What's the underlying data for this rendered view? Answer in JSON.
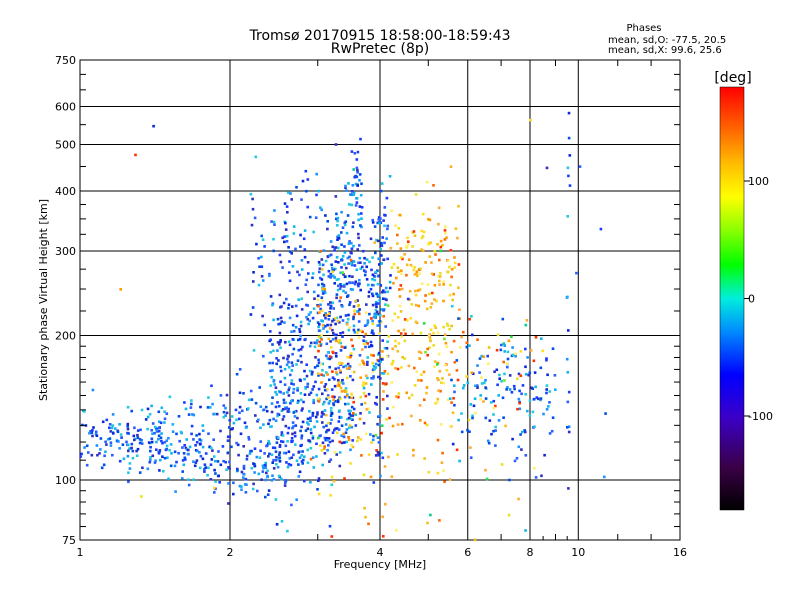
{
  "chart_data": {
    "type": "scatter",
    "title": "Tromsø 20170915 18:58:00-18:59:43",
    "subtitle": "RwPretec (8p)",
    "xlabel": "Frequency [MHz]",
    "ylabel": "Stationary phase Virtual Height [km]",
    "xscale": "log",
    "yscale": "log",
    "xlim": [
      1,
      16
    ],
    "ylim": [
      75,
      750
    ],
    "x_ticks": [
      1,
      2,
      4,
      6,
      8,
      10,
      16
    ],
    "x_tick_labels": [
      "1",
      "2",
      "4",
      "6",
      "8",
      "10",
      "16"
    ],
    "y_ticks": [
      75,
      100,
      200,
      300,
      400,
      500,
      600,
      750
    ],
    "y_tick_labels": [
      "75",
      "100",
      "200",
      "300",
      "400",
      "500",
      "600",
      "750"
    ],
    "grid": true,
    "stats": {
      "heading": "Phases",
      "line1": "mean, sd,O: -77.5, 20.5",
      "line2": "mean, sd,X:  99.6, 25.6"
    },
    "colorbar": {
      "label": "[deg]",
      "range": [
        -180,
        180
      ],
      "ticks": [
        100,
        0,
        -100
      ],
      "tick_labels": [
        "100",
        "0",
        "-100"
      ]
    },
    "series_summary": [
      {
        "name": "O-mode trace (blue)",
        "freq_range_mhz": [
          1.0,
          3.6
        ],
        "height_range_km": [
          110,
          540
        ],
        "phase_mean_deg": -77.5
      },
      {
        "name": "X-mode trace (yellow/orange)",
        "freq_range_mhz": [
          3.0,
          6.8
        ],
        "height_range_km": [
          115,
          380
        ],
        "phase_mean_deg": 99.6
      }
    ]
  },
  "colors": {
    "background": "#ffffff",
    "grid": "#000000",
    "o_mode": "#1a3cff",
    "x_mode": "#f2c01a"
  }
}
